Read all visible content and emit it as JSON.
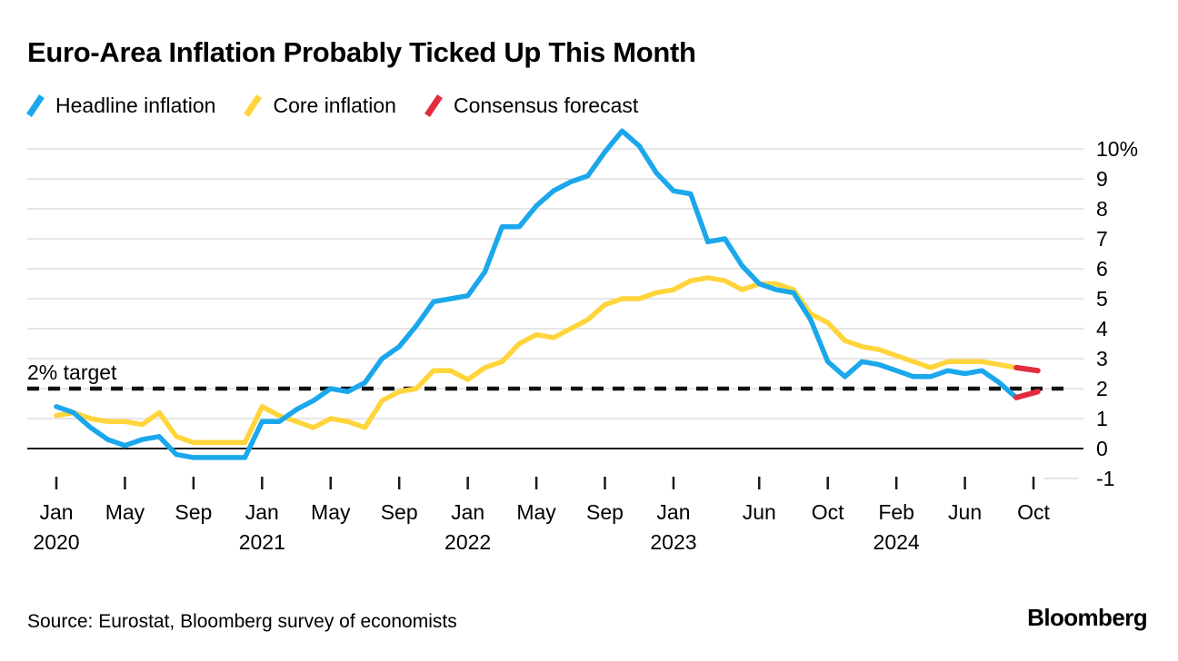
{
  "header": {
    "title": "Euro-Area Inflation Probably Ticked Up This Month"
  },
  "legend": {
    "items": [
      {
        "label": "Headline inflation",
        "color": "#1AA7EC"
      },
      {
        "label": "Core inflation",
        "color": "#FFD53B"
      },
      {
        "label": "Consensus forecast",
        "color": "#E22C3E"
      }
    ]
  },
  "footer": {
    "source": "Source: Eurostat, Bloomberg survey of economists",
    "logo": "Bloomberg"
  },
  "chart_data": {
    "type": "line",
    "title": "Euro-Area Inflation Probably Ticked Up This Month",
    "x_start": "2020-01",
    "x_end": "2024-10",
    "x_unit": "month",
    "ylim": [
      -1,
      10.6
    ],
    "grid": "horizontal",
    "legend_position": "top",
    "y_ticks": {
      "values": [
        10,
        9,
        8,
        7,
        6,
        5,
        4,
        3,
        2,
        1,
        0,
        -1
      ],
      "labels": [
        "10%",
        "9",
        "8",
        "7",
        "6",
        "5",
        "4",
        "3",
        "2",
        "1",
        "0",
        "-1"
      ]
    },
    "x_ticks": [
      {
        "month_index": 0,
        "label": "Jan",
        "year": "2020"
      },
      {
        "month_index": 4,
        "label": "May"
      },
      {
        "month_index": 8,
        "label": "Sep"
      },
      {
        "month_index": 12,
        "label": "Jan",
        "year": "2021"
      },
      {
        "month_index": 16,
        "label": "May"
      },
      {
        "month_index": 20,
        "label": "Sep"
      },
      {
        "month_index": 24,
        "label": "Jan",
        "year": "2022"
      },
      {
        "month_index": 28,
        "label": "May"
      },
      {
        "month_index": 32,
        "label": "Sep"
      },
      {
        "month_index": 36,
        "label": "Jan",
        "year": "2023"
      },
      {
        "month_index": 41,
        "label": "Jun"
      },
      {
        "month_index": 45,
        "label": "Oct"
      },
      {
        "month_index": 49,
        "label": "Feb",
        "year": "2024"
      },
      {
        "month_index": 53,
        "label": "Jun"
      },
      {
        "month_index": 57,
        "label": "Oct"
      }
    ],
    "target_line": {
      "value": 2,
      "label": "2% target",
      "style": "dashed"
    },
    "series": [
      {
        "name": "Headline inflation",
        "color": "#1AA7EC",
        "unit": "% YoY",
        "values": [
          1.4,
          1.2,
          0.7,
          0.3,
          0.1,
          0.3,
          0.4,
          -0.2,
          -0.3,
          -0.3,
          -0.3,
          -0.3,
          0.9,
          0.9,
          1.3,
          1.6,
          2.0,
          1.9,
          2.2,
          3.0,
          3.4,
          4.1,
          4.9,
          5.0,
          5.1,
          5.9,
          7.4,
          7.4,
          8.1,
          8.6,
          8.9,
          9.1,
          9.9,
          10.6,
          10.1,
          9.2,
          8.6,
          8.5,
          6.9,
          7.0,
          6.1,
          5.5,
          5.3,
          5.2,
          4.3,
          2.9,
          2.4,
          2.9,
          2.8,
          2.6,
          2.4,
          2.4,
          2.6,
          2.5,
          2.6,
          2.2,
          1.7
        ]
      },
      {
        "name": "Core inflation",
        "color": "#FFD53B",
        "unit": "% YoY",
        "values": [
          1.1,
          1.2,
          1.0,
          0.9,
          0.9,
          0.8,
          1.2,
          0.4,
          0.2,
          0.2,
          0.2,
          0.2,
          1.4,
          1.1,
          0.9,
          0.7,
          1.0,
          0.9,
          0.7,
          1.6,
          1.9,
          2.0,
          2.6,
          2.6,
          2.3,
          2.7,
          2.9,
          3.5,
          3.8,
          3.7,
          4.0,
          4.3,
          4.8,
          5.0,
          5.0,
          5.2,
          5.3,
          5.6,
          5.7,
          5.6,
          5.3,
          5.5,
          5.5,
          5.3,
          4.5,
          4.2,
          3.6,
          3.4,
          3.3,
          3.1,
          2.9,
          2.7,
          2.9,
          2.9,
          2.9,
          2.8,
          2.7
        ]
      }
    ],
    "forecast": {
      "name": "Consensus forecast",
      "color": "#E22C3E",
      "month_index": 57,
      "month_label": "Oct 2024",
      "points": [
        {
          "series": "Headline inflation",
          "from_value": 1.7,
          "value": 1.9
        },
        {
          "series": "Core inflation",
          "from_value": 2.7,
          "value": 2.6
        }
      ]
    }
  }
}
